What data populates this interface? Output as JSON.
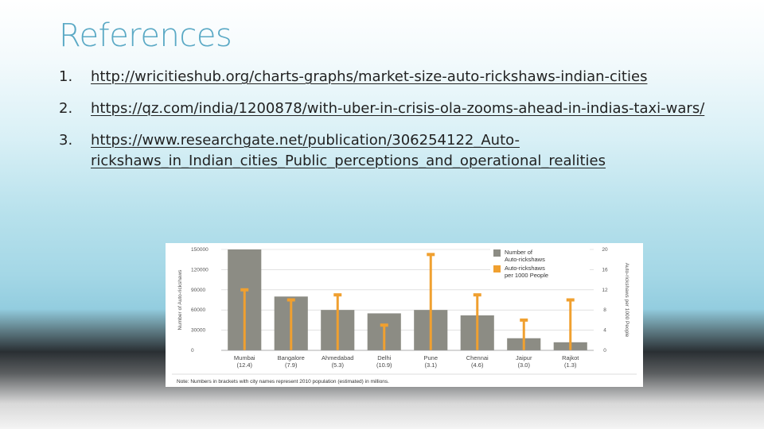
{
  "slide": {
    "title": "References",
    "references": [
      {
        "number": "1.",
        "url": "http://wricitieshub.org/charts-graphs/market-size-auto-rickshaws-indian-cities"
      },
      {
        "number": "2.",
        "url": "https://qz.com/india/1200878/with-uber-in-crisis-ola-zooms-ahead-in-indias-taxi-wars/"
      },
      {
        "number": "3.",
        "url": "https://www.researchgate.net/publication/306254122_Auto-rickshaws_in_Indian_cities_Public_perceptions_and_operational_realities"
      }
    ]
  },
  "chart_data": {
    "type": "bar",
    "categories": [
      "Mumbai",
      "Bangalore",
      "Ahmedabad",
      "Delhi",
      "Pune",
      "Chennai",
      "Jaipur",
      "Rajkot"
    ],
    "category_sublabels": [
      "(12.4)",
      "(7.9)",
      "(5.3)",
      "(10.9)",
      "(3.1)",
      "(4.6)",
      "(3.0)",
      "(1.3)"
    ],
    "series": [
      {
        "name": "Number of Auto-rickshaws",
        "axis": "left",
        "style": "bar",
        "color": "#8c8c84",
        "values": [
          150000,
          80000,
          60000,
          55000,
          60000,
          52000,
          18000,
          12000
        ]
      },
      {
        "name": "Auto-rickshaws per 1000 People",
        "axis": "right",
        "style": "lollipop",
        "color": "#f0a030",
        "values": [
          12,
          10,
          11,
          5,
          19,
          11,
          6,
          10
        ]
      }
    ],
    "ylabel": "Number of Auto-rickshaws",
    "y2label": "Auto-rickshaws per 1000 People",
    "ylim": [
      0,
      150000
    ],
    "y2lim": [
      0,
      20
    ],
    "yticks": [
      "150000",
      "120000",
      "90000",
      "60000",
      "30000",
      "0"
    ],
    "y2ticks": [
      "20",
      "16",
      "12",
      "8",
      "4",
      "0"
    ],
    "legend": {
      "placement": "top-right",
      "entries": [
        "Number of",
        "Auto-rickshaws",
        "Auto-rickshaws",
        "per 1000 People"
      ]
    },
    "note": "Note: Numbers in brackets with city names represent 2010 population (estimated) in millions.",
    "grid": true
  }
}
